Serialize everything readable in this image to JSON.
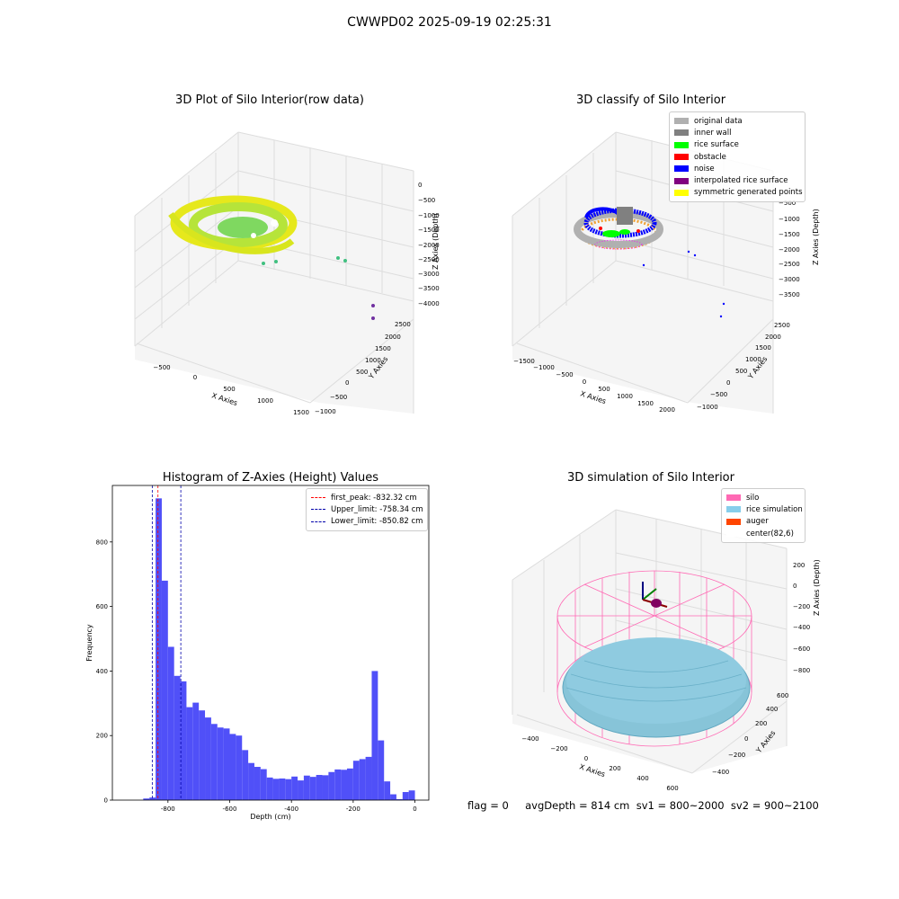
{
  "figure_title": "CWWPD02 2025-09-19 02:25:31",
  "status_text": "flag = 0     avgDepth = 814 cm  sv1 = 800~2000  sv2 = 900~2100",
  "chart_data": [
    {
      "type": "scatter",
      "title": "3D Plot of Silo Interior(row data)",
      "xlabel": "X Axies",
      "ylabel": "Y Axies",
      "zlabel": "Z Axies (Depth)",
      "x_ticks": [
        "−500",
        "0",
        "500",
        "1000",
        "1500"
      ],
      "y_ticks": [
        "−1000",
        "−500",
        "0",
        "500",
        "1000",
        "1500",
        "2000",
        "2500"
      ],
      "z_ticks": [
        "0",
        "−500",
        "−1000",
        "−1500",
        "−2000",
        "−2500",
        "−3000",
        "−3500",
        "−4000"
      ]
    },
    {
      "type": "scatter",
      "title": "3D classify of Silo Interior",
      "xlabel": "X Axies",
      "ylabel": "Y Axies",
      "zlabel": "Z Axies (Depth)",
      "x_ticks": [
        "−1500",
        "−1000",
        "−500",
        "0",
        "500",
        "1000",
        "1500",
        "2000"
      ],
      "y_ticks": [
        "−1000",
        "−500",
        "0",
        "500",
        "1000",
        "1500",
        "2000",
        "2500"
      ],
      "z_ticks": [
        "−500",
        "−1000",
        "−1500",
        "−2000",
        "−2500",
        "−3000",
        "−3500"
      ],
      "legend": [
        {
          "label": "original data",
          "color": "#b0b0b0"
        },
        {
          "label": "inner wall",
          "color": "#808080"
        },
        {
          "label": "rice surface",
          "color": "#00ff00"
        },
        {
          "label": "obstacle",
          "color": "#ff0000"
        },
        {
          "label": "noise",
          "color": "#0000ff"
        },
        {
          "label": "interpolated rice surface",
          "color": "#800080"
        },
        {
          "label": "symmetric generated points",
          "color": "#ffff00"
        }
      ]
    },
    {
      "type": "bar",
      "title": "Histogram of Z-Axies (Height) Values",
      "xlabel": "Depth (cm)",
      "ylabel": "Frequency",
      "xlim": [
        -980,
        45
      ],
      "ylim": [
        0,
        975
      ],
      "x_ticks": [
        -800,
        -600,
        -400,
        -200,
        0
      ],
      "y_ticks": [
        0,
        200,
        400,
        600,
        800
      ],
      "bar_color": "#5050f8",
      "bin_width": 20,
      "bins_start": [
        -880,
        -860,
        -840,
        -820,
        -800,
        -780,
        -760,
        -740,
        -720,
        -700,
        -680,
        -660,
        -640,
        -620,
        -600,
        -580,
        -560,
        -540,
        -520,
        -500,
        -480,
        -460,
        -440,
        -420,
        -400,
        -380,
        -360,
        -340,
        -320,
        -300,
        -280,
        -260,
        -240,
        -220,
        -200,
        -180,
        -160,
        -140,
        -120,
        -100,
        -80,
        -60,
        -40,
        -20
      ],
      "counts": [
        5,
        8,
        935,
        680,
        475,
        385,
        368,
        288,
        302,
        278,
        256,
        236,
        225,
        222,
        205,
        200,
        155,
        115,
        103,
        96,
        70,
        66,
        67,
        65,
        73,
        61,
        76,
        72,
        78,
        77,
        87,
        95,
        94,
        98,
        122,
        127,
        134,
        400,
        185,
        58,
        18,
        3,
        25,
        30
      ],
      "lines": [
        {
          "label": "first_peak: -832.32 cm",
          "x": -832.32,
          "color": "#ff0000"
        },
        {
          "label": "Upper_limit: -758.34 cm",
          "x": -758.34,
          "color": "#0000aa"
        },
        {
          "label": "Lower_limit: -850.82 cm",
          "x": -850.82,
          "color": "#0000aa"
        }
      ]
    },
    {
      "type": "scatter",
      "title": "3D simulation of Silo Interior",
      "xlabel": "X Axies",
      "ylabel": "Y Axies",
      "zlabel": "Z Axies (Depth)",
      "x_ticks": [
        "−400",
        "−200",
        "0",
        "200",
        "400",
        "600"
      ],
      "y_ticks": [
        "−400",
        "−200",
        "0",
        "200",
        "400",
        "600"
      ],
      "z_ticks": [
        "200",
        "0",
        "−200",
        "−400",
        "−600",
        "−800"
      ],
      "legend": [
        {
          "label": "silo",
          "color": "#ff69b4"
        },
        {
          "label": "rice simulation",
          "color": "#87ceeb"
        },
        {
          "label": "auger",
          "color": "#ff4500"
        },
        {
          "label": "center(82,6)",
          "color": "#ffffff"
        }
      ]
    }
  ]
}
